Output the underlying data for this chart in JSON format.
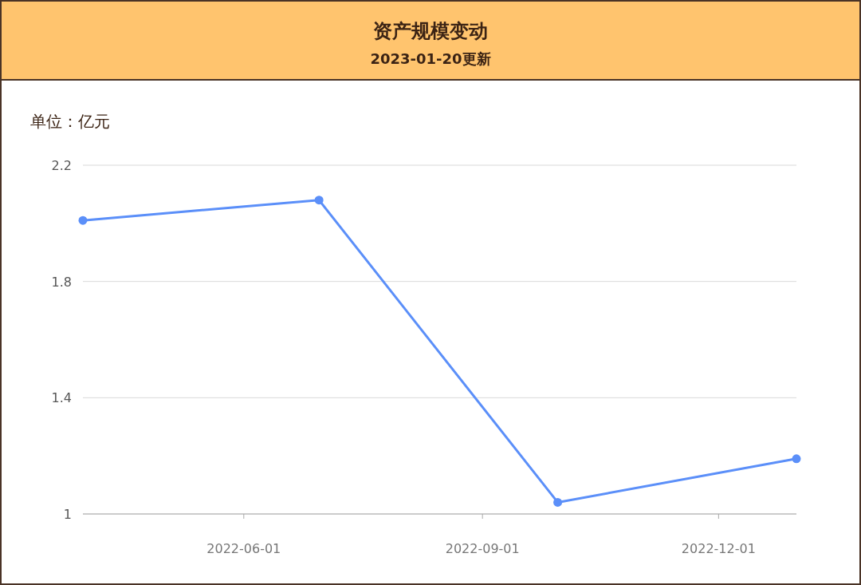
{
  "chart_data": {
    "type": "line",
    "title": "资产规模变动",
    "subtitle": "2023-01-20更新",
    "ylabel": "单位：亿元",
    "x": [
      "2022-03-31",
      "2022-06-30",
      "2022-09-30",
      "2022-12-31"
    ],
    "series": [
      {
        "color": "#5b8ff9",
        "values": [
          2.01,
          2.08,
          1.04,
          1.19
        ]
      }
    ],
    "xlim": [
      "2022-03-31",
      "2022-12-31"
    ],
    "xticks": [
      "2022-06-01",
      "2022-09-01",
      "2022-12-01"
    ],
    "ylim": [
      1,
      2.2
    ],
    "yticks": [
      1,
      1.4,
      1.8,
      2.2
    ],
    "grid": "y",
    "marker": "circle",
    "line_style": "solid"
  }
}
